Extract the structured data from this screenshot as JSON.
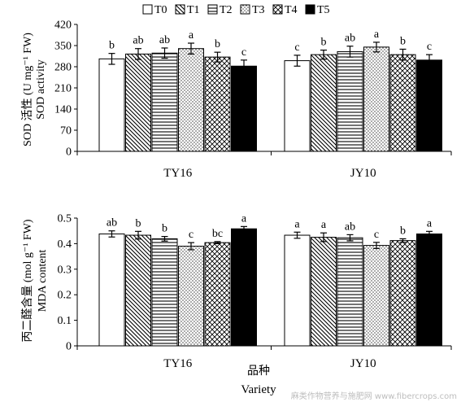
{
  "legend": [
    {
      "label": "T0",
      "pattern": "white"
    },
    {
      "label": "T1",
      "pattern": "diag-back"
    },
    {
      "label": "T2",
      "pattern": "hlines"
    },
    {
      "label": "T3",
      "pattern": "dots"
    },
    {
      "label": "T4",
      "pattern": "cross"
    },
    {
      "label": "T5",
      "pattern": "black"
    }
  ],
  "watermark": "麻类作物营养与施肥网 www.fibercrops.com",
  "chart_data": [
    {
      "type": "bar",
      "ylabel_cn": "SOD 活性 (U mg⁻¹ FW)",
      "ylabel_en": "SOD activity",
      "xlabel_cn": "",
      "xlabel_en": "",
      "ylim": [
        0,
        420
      ],
      "yticks": [
        "0",
        "70",
        "140",
        "210",
        "280",
        "350",
        "420"
      ],
      "categories": [
        "TY16",
        "JY10"
      ],
      "series": [
        {
          "name": "T0",
          "values": [
            306,
            300
          ],
          "errors": [
            18,
            18
          ],
          "letters": [
            "b",
            "c"
          ]
        },
        {
          "name": "T1",
          "values": [
            322,
            320
          ],
          "errors": [
            18,
            15
          ],
          "letters": [
            "ab",
            "b"
          ]
        },
        {
          "name": "T2",
          "values": [
            325,
            330
          ],
          "errors": [
            17,
            18
          ],
          "letters": [
            "ab",
            "ab"
          ]
        },
        {
          "name": "T3",
          "values": [
            340,
            345
          ],
          "errors": [
            18,
            16
          ],
          "letters": [
            "a",
            "a"
          ]
        },
        {
          "name": "T4",
          "values": [
            312,
            320
          ],
          "errors": [
            16,
            18
          ],
          "letters": [
            "b",
            "b"
          ]
        },
        {
          "name": "T5",
          "values": [
            282,
            302
          ],
          "errors": [
            20,
            18
          ],
          "letters": [
            "c",
            "c"
          ]
        }
      ]
    },
    {
      "type": "bar",
      "ylabel_cn": "丙二醛含量 (mol g⁻¹ FW)",
      "ylabel_en": "MDA content",
      "xlabel_cn": "品种",
      "xlabel_en": "Variety",
      "ylim": [
        0,
        0.5
      ],
      "yticks": [
        "0",
        "0.1",
        "0.2",
        "0.3",
        "0.4",
        "0.5"
      ],
      "categories": [
        "TY16",
        "JY10"
      ],
      "series": [
        {
          "name": "T0",
          "values": [
            0.438,
            0.433
          ],
          "errors": [
            0.012,
            0.012
          ],
          "letters": [
            "ab",
            "a"
          ]
        },
        {
          "name": "T1",
          "values": [
            0.433,
            0.425
          ],
          "errors": [
            0.015,
            0.017
          ],
          "letters": [
            "b",
            "a"
          ]
        },
        {
          "name": "T2",
          "values": [
            0.419,
            0.423
          ],
          "errors": [
            0.009,
            0.012
          ],
          "letters": [
            "b",
            "ab"
          ]
        },
        {
          "name": "T3",
          "values": [
            0.39,
            0.393
          ],
          "errors": [
            0.014,
            0.012
          ],
          "letters": [
            "c",
            "c"
          ]
        },
        {
          "name": "T4",
          "values": [
            0.404,
            0.412
          ],
          "errors": [
            0.004,
            0.007
          ],
          "letters": [
            "bc",
            "b"
          ]
        },
        {
          "name": "T5",
          "values": [
            0.458,
            0.438
          ],
          "errors": [
            0.009,
            0.01
          ],
          "letters": [
            "a",
            "a"
          ]
        }
      ]
    }
  ]
}
